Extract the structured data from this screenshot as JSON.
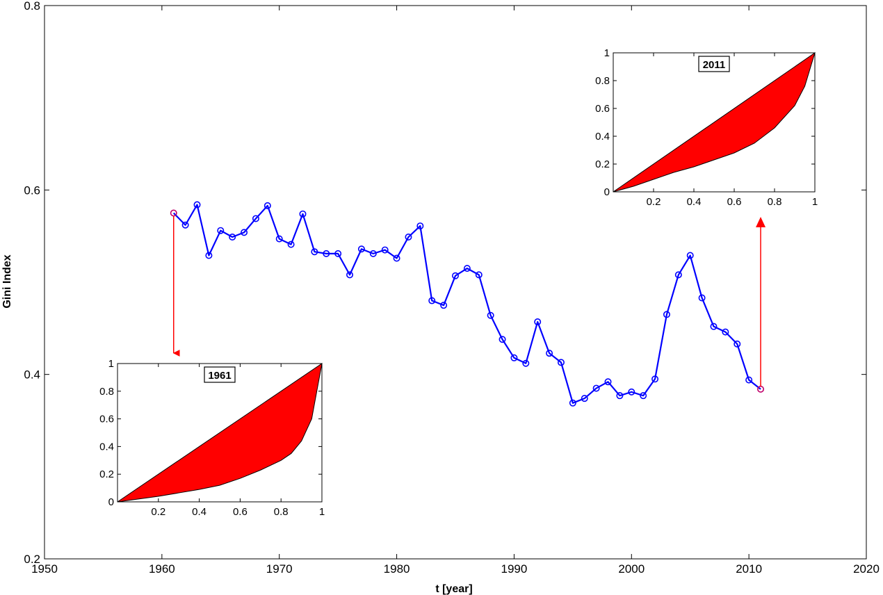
{
  "chart_data": {
    "type": "line",
    "xlabel": "t [year]",
    "ylabel": "Gini Index",
    "xlim": [
      1950,
      2020
    ],
    "ylim": [
      0.2,
      0.8
    ],
    "xticks": [
      1950,
      1960,
      1970,
      1980,
      1990,
      2000,
      2010,
      2020
    ],
    "yticks": [
      0.2,
      0.4,
      0.6,
      0.8
    ],
    "grid": false,
    "marker": "circle",
    "line_color": "#0000ff",
    "highlight_color": "#ff0000",
    "series": [
      {
        "x": [
          1961,
          1962,
          1963,
          1964,
          1965,
          1966,
          1967,
          1968,
          1969,
          1970,
          1971,
          1972,
          1973,
          1974,
          1975,
          1976,
          1977,
          1978,
          1979,
          1980,
          1981,
          1982,
          1983,
          1984,
          1985,
          1986,
          1987,
          1988,
          1989,
          1990,
          1991,
          1992,
          1993,
          1994,
          1995,
          1996,
          1997,
          1998,
          1999,
          2000,
          2001,
          2002,
          2003,
          2004,
          2005,
          2006,
          2007,
          2008,
          2009,
          2010,
          2011
        ],
        "values": [
          0.575,
          0.562,
          0.584,
          0.529,
          0.556,
          0.549,
          0.554,
          0.569,
          0.583,
          0.547,
          0.541,
          0.574,
          0.533,
          0.531,
          0.531,
          0.508,
          0.536,
          0.531,
          0.535,
          0.526,
          0.549,
          0.561,
          0.48,
          0.475,
          0.507,
          0.515,
          0.508,
          0.464,
          0.438,
          0.418,
          0.412,
          0.457,
          0.423,
          0.413,
          0.369,
          0.374,
          0.385,
          0.392,
          0.377,
          0.381,
          0.377,
          0.395,
          0.465,
          0.508,
          0.529,
          0.483,
          0.452,
          0.446,
          0.433,
          0.394,
          0.384
        ]
      }
    ],
    "highlighted_points": [
      1961,
      2011
    ],
    "insets": [
      {
        "title": "1961",
        "type": "area",
        "xlim": [
          0,
          1
        ],
        "ylim": [
          0,
          1
        ],
        "xticks": [
          "0.2",
          "0.4",
          "0.6",
          "0.8",
          "1"
        ],
        "yticks": [
          "0",
          "0.2",
          "0.4",
          "0.6",
          "0.8",
          "1"
        ],
        "fill_color": "#ff0000",
        "lorenz": {
          "x": [
            0,
            0.1,
            0.2,
            0.3,
            0.4,
            0.5,
            0.6,
            0.7,
            0.8,
            0.85,
            0.9,
            0.95,
            1.0
          ],
          "y": [
            0,
            0.02,
            0.04,
            0.065,
            0.09,
            0.12,
            0.17,
            0.23,
            0.3,
            0.35,
            0.44,
            0.6,
            1.0
          ]
        }
      },
      {
        "title": "2011",
        "type": "area",
        "xlim": [
          0,
          1
        ],
        "ylim": [
          0,
          1
        ],
        "xticks": [
          "0.2",
          "0.4",
          "0.6",
          "0.8",
          "1"
        ],
        "yticks": [
          "0",
          "0.2",
          "0.4",
          "0.6",
          "0.8",
          "1"
        ],
        "fill_color": "#ff0000",
        "lorenz": {
          "x": [
            0,
            0.1,
            0.2,
            0.3,
            0.4,
            0.5,
            0.6,
            0.7,
            0.8,
            0.9,
            0.95,
            1.0
          ],
          "y": [
            0,
            0.04,
            0.09,
            0.14,
            0.18,
            0.23,
            0.28,
            0.35,
            0.46,
            0.62,
            0.76,
            1.0
          ]
        }
      }
    ]
  }
}
